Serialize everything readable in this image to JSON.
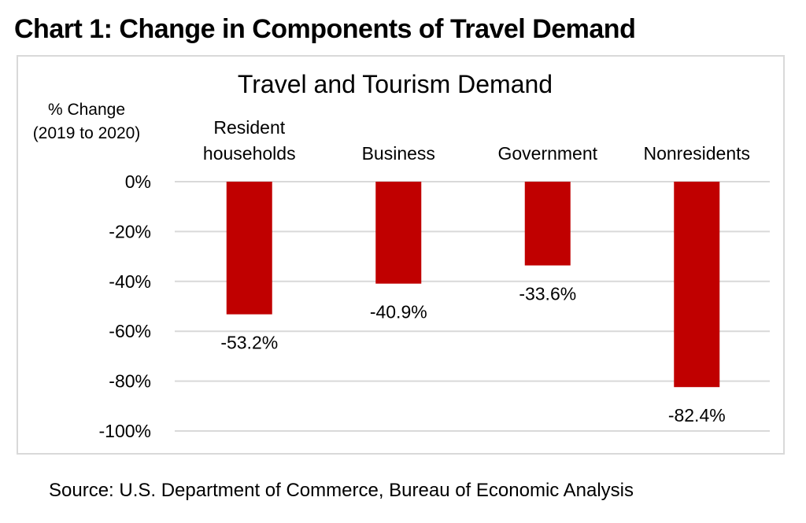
{
  "heading": "Chart 1: Change in Components of Travel Demand",
  "source": "Source: U.S. Department of Commerce, Bureau of Economic Analysis",
  "chart_data": {
    "type": "bar",
    "title": "Travel and Tourism Demand",
    "ylabel": [
      "% Change",
      "(2019 to 2020)"
    ],
    "categories": [
      [
        "Resident",
        "households"
      ],
      [
        "Business"
      ],
      [
        "Government"
      ],
      [
        "Nonresidents"
      ]
    ],
    "values": [
      -53.2,
      -40.9,
      -33.6,
      -82.4
    ],
    "data_labels": [
      "-53.2%",
      "-40.9%",
      "-33.6%",
      "-82.4%"
    ],
    "ylim": [
      -100,
      0
    ],
    "yticks": [
      0,
      -20,
      -40,
      -60,
      -80,
      -100
    ],
    "ytick_labels": [
      "0%",
      "-20%",
      "-40%",
      "-60%",
      "-80%",
      "-100%"
    ],
    "grid": true,
    "bar_color": "#c00000",
    "grid_color": "#d9d9d9",
    "category_position": "top"
  }
}
